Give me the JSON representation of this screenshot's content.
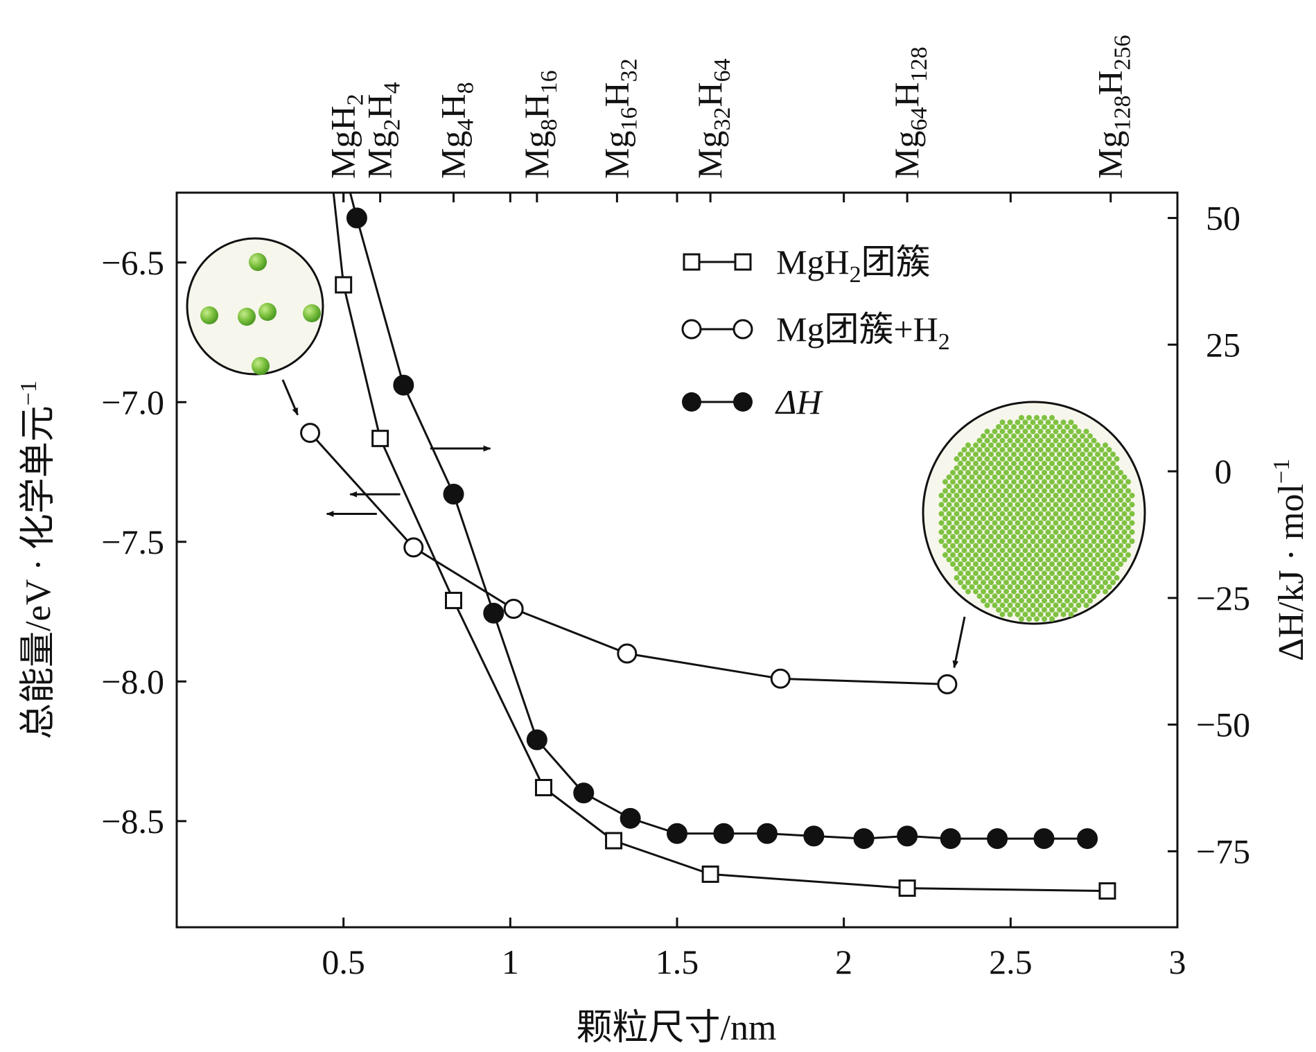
{
  "chart_data": {
    "type": "line",
    "xlabel": "颗粒尺寸/nm",
    "ylabel_left": "总能量/eV · 化学单元",
    "ylabel_left_sup": "−1",
    "ylabel_right": "ΔH/kJ · mol",
    "ylabel_right_sup": "−1",
    "xlim": [
      0,
      3
    ],
    "ylim_left": [
      -8.88,
      -6.25
    ],
    "ylim_right": [
      -90,
      55
    ],
    "x_ticks": [
      {
        "value": 0.5,
        "label": "0.5"
      },
      {
        "value": 1,
        "label": "1"
      },
      {
        "value": 1.5,
        "label": "1.5"
      },
      {
        "value": 2,
        "label": "2"
      },
      {
        "value": 2.5,
        "label": "2.5"
      },
      {
        "value": 3,
        "label": "3"
      }
    ],
    "y_left_ticks": [
      {
        "value": -6.5,
        "label": "−6.5"
      },
      {
        "value": -7.0,
        "label": "−7.0"
      },
      {
        "value": -7.5,
        "label": "−7.5"
      },
      {
        "value": -8.0,
        "label": "−8.0"
      },
      {
        "value": -8.5,
        "label": "−8.5"
      }
    ],
    "y_right_ticks": [
      {
        "value": 50,
        "label": "50"
      },
      {
        "value": 25,
        "label": "25"
      },
      {
        "value": 0,
        "label": "0"
      },
      {
        "value": -25,
        "label": "−25"
      },
      {
        "value": -50,
        "label": "−50"
      },
      {
        "value": -75,
        "label": "−75"
      }
    ],
    "series": [
      {
        "name": "MgH2团簇",
        "legend": {
          "main": "MgH",
          "sub": "2",
          "tail": "团簇"
        },
        "marker": "open-square",
        "axis": "left",
        "curve_start": [
          0.47,
          -6.25
        ],
        "x": [
          0.5,
          0.61,
          0.83,
          1.1,
          1.31,
          1.6,
          2.19,
          2.79
        ],
        "y": [
          -6.58,
          -7.13,
          -7.71,
          -8.38,
          -8.57,
          -8.69,
          -8.74,
          -8.75
        ]
      },
      {
        "name": "Mg团簇+H2",
        "legend": {
          "main": "Mg团簇+H",
          "sub": "2",
          "tail": ""
        },
        "marker": "open-circle",
        "axis": "left",
        "x": [
          0.4,
          0.71,
          1.01,
          1.35,
          1.81,
          2.31
        ],
        "y": [
          -7.11,
          -7.52,
          -7.74,
          -7.9,
          -7.99,
          -8.01
        ]
      },
      {
        "name": "ΔH",
        "legend": {
          "main": "ΔH",
          "sub": "",
          "tail": ""
        },
        "marker": "filled-circle",
        "axis": "right",
        "curve_start": [
          0.52,
          55
        ],
        "x": [
          0.54,
          0.68,
          0.83,
          0.95,
          1.08,
          1.22,
          1.36,
          1.5,
          1.64,
          1.77,
          1.91,
          2.06,
          2.19,
          2.32,
          2.46,
          2.6,
          2.73
        ],
        "y": [
          50,
          17,
          -4.5,
          -28,
          -53,
          -63.5,
          -68.5,
          -71.5,
          -71.5,
          -71.5,
          -72,
          -72.5,
          -72,
          -72.5,
          -72.5,
          -72.5,
          -72.5
        ]
      }
    ],
    "top_formulas": [
      {
        "x": 0.5,
        "mg": "",
        "h": "2"
      },
      {
        "x": 0.61,
        "mg": "2",
        "h": "4"
      },
      {
        "x": 0.83,
        "mg": "4",
        "h": "8"
      },
      {
        "x": 1.08,
        "mg": "8",
        "h": "16"
      },
      {
        "x": 1.32,
        "mg": "16",
        "h": "32"
      },
      {
        "x": 1.6,
        "mg": "32",
        "h": "64"
      },
      {
        "x": 2.19,
        "mg": "64",
        "h": "128"
      },
      {
        "x": 2.8,
        "mg": "128",
        "h": "256"
      }
    ],
    "annotations": [
      {
        "type": "axis-arrow",
        "direction": "right",
        "target": "right-axis",
        "series": "ΔH"
      },
      {
        "type": "axis-arrow",
        "direction": "left",
        "target": "left-axis",
        "series": "MgH2团簇"
      },
      {
        "type": "axis-arrow",
        "direction": "left",
        "target": "left-axis",
        "series": "Mg团簇+H2"
      },
      {
        "type": "cluster-inset",
        "size": "small",
        "points_to": "Mg团簇+H2 at 0.4 nm"
      },
      {
        "type": "cluster-inset",
        "size": "large",
        "points_to": "Mg团簇+H2 at 2.31 nm"
      }
    ],
    "colors": {
      "ink": "#111111",
      "atom": "#7fc241",
      "atom_dark": "#4e9a24",
      "inset_bg": "#f7f6ec"
    }
  }
}
